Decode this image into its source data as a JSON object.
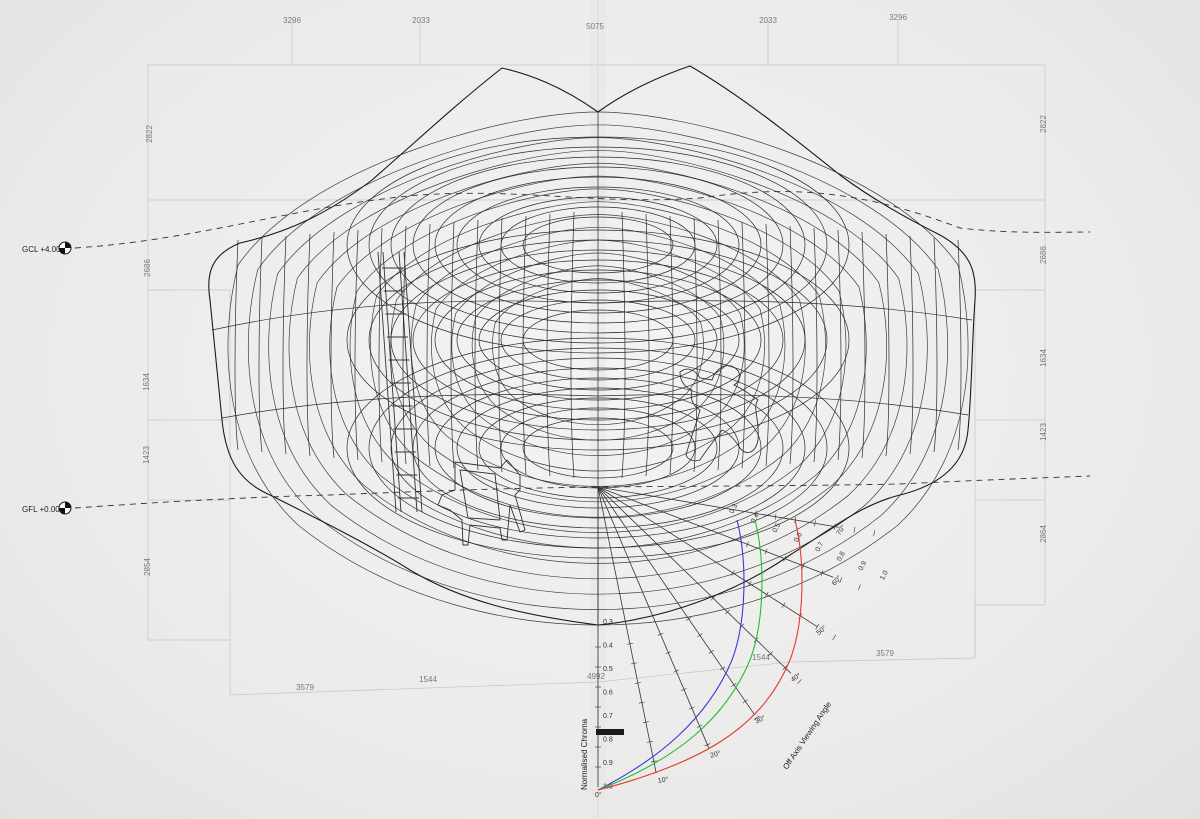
{
  "levels": {
    "gcl": "GCL +4.00",
    "gfl": "GFL +0.00"
  },
  "dimensions": {
    "top": [
      "3296",
      "2033",
      "5075",
      "2033",
      "3296"
    ],
    "left": [
      "2822",
      "2686",
      "1634",
      "1423",
      "2854"
    ],
    "right": [
      "2822",
      "2686",
      "1634",
      "1423",
      "2864"
    ],
    "bottom": [
      "3579",
      "1544",
      "4992",
      "1544",
      "3579"
    ]
  },
  "chart": {
    "ylabel": "Normalised Chroma",
    "xlabel": "Off Axis Viewing Angle",
    "chroma_ticks": [
      "0.3",
      "0.4",
      "0.5",
      "0.6",
      "0.7",
      "0.8",
      "0.9",
      "1.0"
    ],
    "angle_ticks": [
      "0°",
      "10°",
      "20°",
      "30°",
      "40°",
      "50°",
      "60°",
      "70°"
    ],
    "upper_ticks": [
      "0.3",
      "0.4",
      "0.5",
      "0.6",
      "0.7",
      "0.8",
      "0.9",
      "1.0"
    ]
  },
  "colors": {
    "ink": "#2a2a2a",
    "blue_curve": "#3a3ad8",
    "green_curve": "#1fbf3a",
    "red_curve": "#e23a30"
  }
}
